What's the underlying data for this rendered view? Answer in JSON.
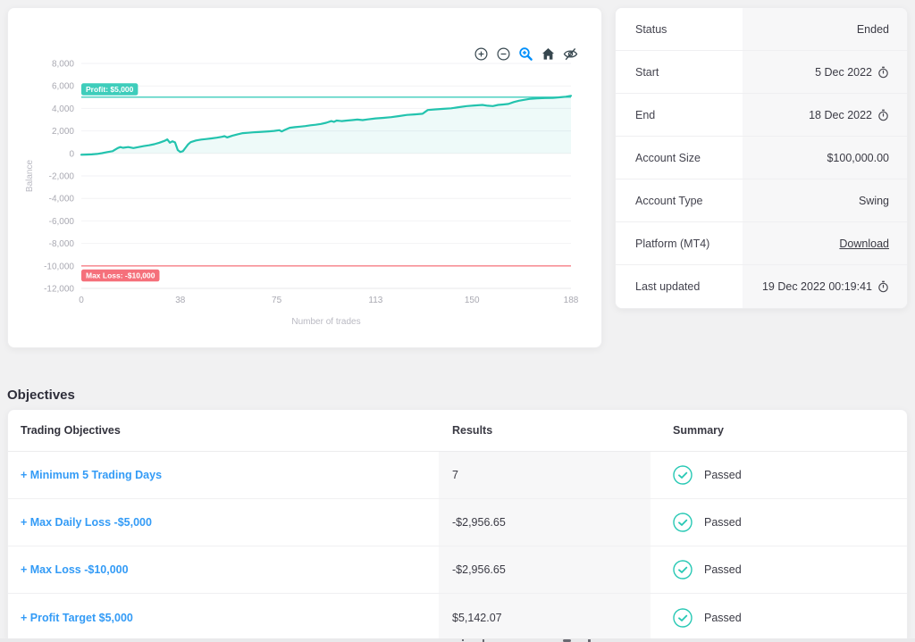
{
  "colors": {
    "accent_teal": "#23c3ae",
    "teal_badge": "#3ecdbb",
    "teal_fill": "rgba(35,195,174,0.08)",
    "red_line": "#f77e86",
    "red_badge": "#f5707b",
    "link_blue": "#339bf6",
    "toolbar_blue": "#008FFB",
    "toolbar_dark": "#37474f",
    "axis_text": "#a9a9b2",
    "grid": "#f2f2f4"
  },
  "chart_data": {
    "type": "line",
    "title": "",
    "xlabel": "Number of trades",
    "ylabel": "Balance",
    "xlim": [
      0,
      188
    ],
    "ylim": [
      -12000,
      8000
    ],
    "grid": true,
    "xticks": [
      0,
      38,
      75,
      113,
      150,
      188
    ],
    "yticks": [
      8000,
      6000,
      4000,
      2000,
      0,
      -2000,
      -4000,
      -6000,
      -8000,
      -10000,
      -12000
    ],
    "ytick_labels": [
      "8,000",
      "6,000",
      "4,000",
      "2,000",
      "0",
      "-2,000",
      "-4,000",
      "-6,000",
      "-8,000",
      "-10,000",
      "-12,000"
    ],
    "series": [
      {
        "name": "Balance",
        "points": [
          [
            0,
            -120
          ],
          [
            2,
            -100
          ],
          [
            4,
            -90
          ],
          [
            6,
            -50
          ],
          [
            8,
            20
          ],
          [
            10,
            120
          ],
          [
            12,
            200
          ],
          [
            14,
            480
          ],
          [
            15,
            560
          ],
          [
            16,
            500
          ],
          [
            18,
            560
          ],
          [
            20,
            480
          ],
          [
            22,
            560
          ],
          [
            24,
            650
          ],
          [
            26,
            720
          ],
          [
            28,
            820
          ],
          [
            30,
            950
          ],
          [
            32,
            1120
          ],
          [
            33,
            1250
          ],
          [
            34,
            950
          ],
          [
            35,
            1080
          ],
          [
            36,
            980
          ],
          [
            37,
            300
          ],
          [
            38,
            130
          ],
          [
            39,
            200
          ],
          [
            40,
            500
          ],
          [
            41,
            800
          ],
          [
            42,
            1000
          ],
          [
            44,
            1150
          ],
          [
            46,
            1230
          ],
          [
            48,
            1280
          ],
          [
            50,
            1330
          ],
          [
            52,
            1400
          ],
          [
            54,
            1480
          ],
          [
            55,
            1530
          ],
          [
            56,
            1420
          ],
          [
            58,
            1580
          ],
          [
            60,
            1700
          ],
          [
            62,
            1800
          ],
          [
            64,
            1830
          ],
          [
            66,
            1870
          ],
          [
            68,
            1900
          ],
          [
            70,
            1930
          ],
          [
            72,
            1960
          ],
          [
            74,
            2000
          ],
          [
            76,
            2060
          ],
          [
            77,
            1950
          ],
          [
            78,
            2080
          ],
          [
            80,
            2280
          ],
          [
            82,
            2330
          ],
          [
            84,
            2380
          ],
          [
            86,
            2430
          ],
          [
            88,
            2500
          ],
          [
            90,
            2550
          ],
          [
            92,
            2620
          ],
          [
            94,
            2720
          ],
          [
            96,
            2870
          ],
          [
            97,
            2800
          ],
          [
            98,
            2920
          ],
          [
            100,
            2870
          ],
          [
            102,
            2920
          ],
          [
            104,
            2960
          ],
          [
            106,
            3010
          ],
          [
            108,
            2960
          ],
          [
            110,
            3020
          ],
          [
            113,
            3110
          ],
          [
            116,
            3160
          ],
          [
            119,
            3220
          ],
          [
            122,
            3320
          ],
          [
            125,
            3420
          ],
          [
            128,
            3470
          ],
          [
            131,
            3520
          ],
          [
            133,
            3860
          ],
          [
            136,
            3910
          ],
          [
            139,
            3960
          ],
          [
            142,
            4010
          ],
          [
            145,
            4110
          ],
          [
            148,
            4210
          ],
          [
            151,
            4260
          ],
          [
            154,
            4310
          ],
          [
            156,
            4240
          ],
          [
            158,
            4210
          ],
          [
            160,
            4310
          ],
          [
            162,
            4350
          ],
          [
            164,
            4400
          ],
          [
            166,
            4560
          ],
          [
            168,
            4680
          ],
          [
            170,
            4760
          ],
          [
            172,
            4840
          ],
          [
            175,
            4890
          ],
          [
            178,
            4920
          ],
          [
            181,
            4930
          ],
          [
            184,
            4990
          ],
          [
            186,
            5040
          ],
          [
            188,
            5120
          ]
        ]
      }
    ],
    "annotation_lines": [
      {
        "y": 5000,
        "label": "Profit: $5,000",
        "line_color": "#3ecdbb",
        "badge_color": "#3ecdbb",
        "badge_side": "above"
      },
      {
        "y": -10000,
        "label": "Max Loss: -$10,000",
        "line_color": "#f77e86",
        "badge_color": "#f5707b",
        "badge_side": "below"
      }
    ],
    "legend": "none",
    "toolbar_icons": [
      "zoom-in",
      "zoom-out",
      "selection-zoom",
      "home",
      "eye-hide"
    ]
  },
  "details": {
    "rows": [
      {
        "label": "Status",
        "value": "Ended"
      },
      {
        "label": "Start",
        "value": "5 Dec 2022"
      },
      {
        "label": "End",
        "value": "18 Dec 2022"
      },
      {
        "label": "Account Size",
        "value": "$100,000.00"
      },
      {
        "label": "Account Type",
        "value": "Swing"
      },
      {
        "label": "Platform (MT4)",
        "value": "Download"
      },
      {
        "label": "Last updated",
        "value": "19 Dec 2022 00:19:41"
      }
    ]
  },
  "objectives": {
    "title": "Objectives",
    "headers": [
      "Trading Objectives",
      "Results",
      "Summary"
    ],
    "rows": [
      {
        "objective": "+ Minimum 5 Trading Days",
        "result": "7",
        "summary": "Passed"
      },
      {
        "objective": "+ Max Daily Loss -$5,000",
        "result": "-$2,956.65",
        "summary": "Passed"
      },
      {
        "objective": "+ Max Loss -$10,000",
        "result": "-$2,956.65",
        "summary": "Passed"
      },
      {
        "objective": "+ Profit Target $5,000",
        "result": "$5,142.07",
        "summary": "Passed"
      }
    ]
  }
}
